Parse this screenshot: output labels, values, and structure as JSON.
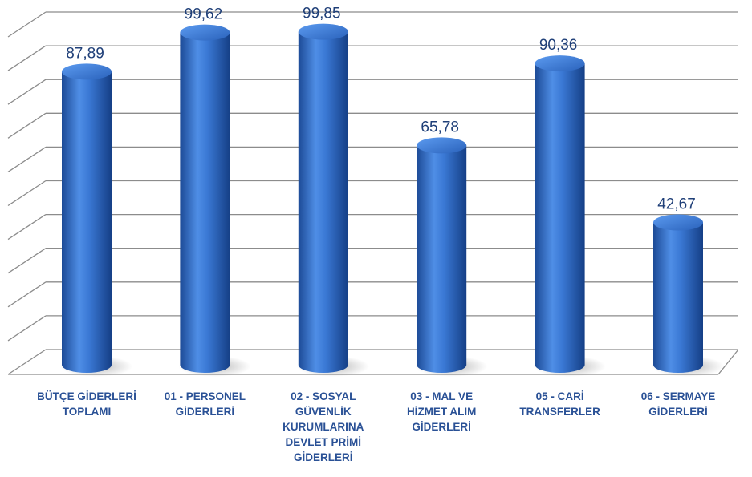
{
  "chart_data": {
    "type": "bar3d",
    "categories": [
      "BÜTÇE GİDERLERİ TOPLAMI",
      "01 - PERSONEL GİDERLERİ",
      "02 - SOSYAL GÜVENLİK KURUMLARINA DEVLET PRİMİ GİDERLERİ",
      "03 - MAL VE HİZMET ALIM GİDERLERİ",
      "05 - CARİ TRANSFERLER",
      "06 - SERMAYE GİDERLERİ"
    ],
    "values": [
      87.89,
      99.62,
      99.85,
      65.78,
      90.36,
      42.67
    ],
    "value_labels": [
      "87,89",
      "99,62",
      "99,85",
      "65,78",
      "90,36",
      "42,67"
    ],
    "color": "#2f6cc6",
    "ylim": [
      0,
      100
    ],
    "yticks": [
      0,
      10,
      20,
      30,
      40,
      50,
      60,
      70,
      80,
      90,
      100
    ],
    "grid": true
  }
}
